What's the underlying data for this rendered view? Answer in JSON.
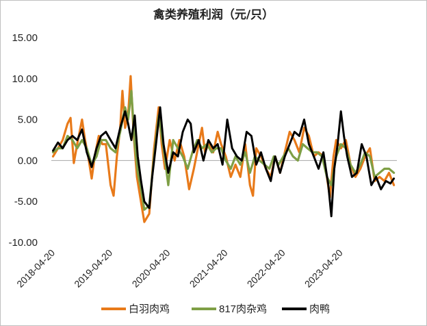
{
  "chart_data": {
    "type": "line",
    "title": "禽类养殖利润（元/只）",
    "xlabel": "",
    "ylabel": "",
    "ylim": [
      -10,
      15
    ],
    "yticks": [
      15,
      10,
      5,
      0,
      -5,
      -10
    ],
    "ytick_labels": [
      "15.00",
      "10.00",
      "5.00",
      "0.00",
      "-5.00",
      "-10.00"
    ],
    "xlim": [
      "2018-04-20",
      "2024-04-20"
    ],
    "xticks": [
      "2018-04-20",
      "2019-04-20",
      "2020-04-20",
      "2021-04-20",
      "2022-04-20",
      "2023-04-20"
    ],
    "grid": false,
    "legend_position": "bottom",
    "series": [
      {
        "name": "白羽肉鸡",
        "color": "#E87A1A",
        "points": [
          [
            "2018-05-01",
            0.5
          ],
          [
            "2018-06-01",
            1.5
          ],
          [
            "2018-07-01",
            2.5
          ],
          [
            "2018-08-01",
            4.5
          ],
          [
            "2018-08-20",
            5.2
          ],
          [
            "2018-09-10",
            -0.3
          ],
          [
            "2018-10-01",
            2.0
          ],
          [
            "2018-11-01",
            5.0
          ],
          [
            "2018-11-20",
            2.5
          ],
          [
            "2018-12-10",
            0.5
          ],
          [
            "2019-01-01",
            -2.2
          ],
          [
            "2019-01-20",
            0.5
          ],
          [
            "2019-02-15",
            3.0
          ],
          [
            "2019-03-10",
            2.0
          ],
          [
            "2019-04-01",
            2.0
          ],
          [
            "2019-05-01",
            -3.0
          ],
          [
            "2019-05-20",
            -4.3
          ],
          [
            "2019-06-10",
            0.5
          ],
          [
            "2019-07-01",
            4.0
          ],
          [
            "2019-07-15",
            8.5
          ],
          [
            "2019-08-01",
            4.0
          ],
          [
            "2019-08-20",
            5.5
          ],
          [
            "2019-09-05",
            10.3
          ],
          [
            "2019-09-25",
            3.0
          ],
          [
            "2019-10-15",
            -2.0
          ],
          [
            "2019-11-01",
            -4.0
          ],
          [
            "2019-12-01",
            -7.5
          ],
          [
            "2020-01-01",
            -6.5
          ],
          [
            "2020-02-01",
            1.5
          ],
          [
            "2020-03-01",
            6.5
          ],
          [
            "2020-03-20",
            2.0
          ],
          [
            "2020-04-10",
            -1.0
          ],
          [
            "2020-05-10",
            2.5
          ],
          [
            "2020-06-10",
            0.0
          ],
          [
            "2020-07-10",
            2.5
          ],
          [
            "2020-08-10",
            0.5
          ],
          [
            "2020-09-10",
            -3.5
          ],
          [
            "2020-10-10",
            -1.0
          ],
          [
            "2020-11-10",
            2.0
          ],
          [
            "2020-12-01",
            4.0
          ],
          [
            "2020-12-20",
            1.0
          ],
          [
            "2021-01-10",
            2.0
          ],
          [
            "2021-02-10",
            1.0
          ],
          [
            "2021-03-10",
            3.5
          ],
          [
            "2021-04-01",
            2.0
          ],
          [
            "2021-05-01",
            0.5
          ],
          [
            "2021-06-01",
            -2.0
          ],
          [
            "2021-07-01",
            -0.5
          ],
          [
            "2021-08-01",
            -2.0
          ],
          [
            "2021-09-01",
            2.0
          ],
          [
            "2021-10-01",
            -3.0
          ],
          [
            "2021-10-20",
            -4.3
          ],
          [
            "2021-11-10",
            1.5
          ],
          [
            "2021-12-10",
            0.5
          ],
          [
            "2022-01-10",
            -1.0
          ],
          [
            "2022-02-10",
            -2.0
          ],
          [
            "2022-03-10",
            0.5
          ],
          [
            "2022-04-10",
            -1.5
          ],
          [
            "2022-05-10",
            1.0
          ],
          [
            "2022-06-10",
            3.5
          ],
          [
            "2022-07-10",
            2.5
          ],
          [
            "2022-08-10",
            1.0
          ],
          [
            "2022-09-10",
            4.0
          ],
          [
            "2022-10-10",
            3.0
          ],
          [
            "2022-11-10",
            0.5
          ],
          [
            "2022-12-10",
            1.0
          ],
          [
            "2023-01-10",
            0.5
          ],
          [
            "2023-02-01",
            -2.0
          ],
          [
            "2023-02-20",
            -4.5
          ],
          [
            "2023-03-15",
            0.5
          ],
          [
            "2023-04-01",
            2.5
          ],
          [
            "2023-05-01",
            1.5
          ],
          [
            "2023-06-01",
            2.5
          ],
          [
            "2023-07-01",
            -0.5
          ],
          [
            "2023-08-01",
            -2.0
          ],
          [
            "2023-09-01",
            -1.0
          ],
          [
            "2023-10-01",
            0.5
          ],
          [
            "2023-11-01",
            1.5
          ],
          [
            "2023-12-01",
            -2.5
          ],
          [
            "2024-01-01",
            -2.0
          ],
          [
            "2024-02-01",
            -2.5
          ],
          [
            "2024-03-01",
            -1.5
          ],
          [
            "2024-04-01",
            -3.0
          ]
        ]
      },
      {
        "name": "817肉杂鸡",
        "color": "#7E9F45",
        "points": [
          [
            "2018-05-01",
            1.0
          ],
          [
            "2018-06-01",
            1.5
          ],
          [
            "2018-07-01",
            1.5
          ],
          [
            "2018-08-01",
            3.0
          ],
          [
            "2018-09-01",
            2.5
          ],
          [
            "2018-10-01",
            1.5
          ],
          [
            "2018-11-01",
            2.5
          ],
          [
            "2018-12-01",
            1.5
          ],
          [
            "2019-01-01",
            -0.5
          ],
          [
            "2019-02-01",
            0.5
          ],
          [
            "2019-03-01",
            2.5
          ],
          [
            "2019-04-01",
            2.5
          ],
          [
            "2019-05-01",
            1.5
          ],
          [
            "2019-06-01",
            1.0
          ],
          [
            "2019-07-01",
            3.5
          ],
          [
            "2019-08-01",
            6.5
          ],
          [
            "2019-08-20",
            5.0
          ],
          [
            "2019-09-10",
            8.5
          ],
          [
            "2019-10-01",
            2.0
          ],
          [
            "2019-10-20",
            -1.5
          ],
          [
            "2019-11-10",
            -3.5
          ],
          [
            "2019-12-01",
            -6.0
          ],
          [
            "2020-01-01",
            -5.5
          ],
          [
            "2020-02-01",
            0.5
          ],
          [
            "2020-03-01",
            5.5
          ],
          [
            "2020-04-01",
            1.5
          ],
          [
            "2020-05-01",
            -3.0
          ],
          [
            "2020-06-01",
            2.5
          ],
          [
            "2020-07-01",
            1.5
          ],
          [
            "2020-08-01",
            0.5
          ],
          [
            "2020-09-01",
            -1.0
          ],
          [
            "2020-10-01",
            1.0
          ],
          [
            "2020-11-01",
            2.5
          ],
          [
            "2020-12-01",
            1.5
          ],
          [
            "2021-01-01",
            2.0
          ],
          [
            "2021-02-01",
            1.0
          ],
          [
            "2021-03-01",
            1.5
          ],
          [
            "2021-04-01",
            1.5
          ],
          [
            "2021-05-01",
            0.0
          ],
          [
            "2021-06-01",
            -1.0
          ],
          [
            "2021-07-01",
            0.5
          ],
          [
            "2021-08-01",
            -0.5
          ],
          [
            "2021-09-01",
            1.0
          ],
          [
            "2021-10-01",
            -1.5
          ],
          [
            "2021-11-01",
            0.5
          ],
          [
            "2021-12-01",
            0.0
          ],
          [
            "2022-01-01",
            -0.5
          ],
          [
            "2022-02-01",
            -1.0
          ],
          [
            "2022-03-01",
            0.5
          ],
          [
            "2022-04-01",
            -0.5
          ],
          [
            "2022-05-01",
            0.5
          ],
          [
            "2022-06-01",
            1.5
          ],
          [
            "2022-07-01",
            0.5
          ],
          [
            "2022-08-01",
            0.0
          ],
          [
            "2022-09-01",
            2.0
          ],
          [
            "2022-10-01",
            1.5
          ],
          [
            "2022-11-01",
            1.0
          ],
          [
            "2022-12-01",
            1.0
          ],
          [
            "2023-01-01",
            0.5
          ],
          [
            "2023-02-01",
            -2.0
          ],
          [
            "2023-03-01",
            -3.0
          ],
          [
            "2023-04-01",
            0.5
          ],
          [
            "2023-05-01",
            2.0
          ],
          [
            "2023-06-01",
            1.5
          ],
          [
            "2023-07-01",
            -0.5
          ],
          [
            "2023-08-01",
            -1.5
          ],
          [
            "2023-09-01",
            -0.5
          ],
          [
            "2023-10-01",
            1.0
          ],
          [
            "2023-11-01",
            0.5
          ],
          [
            "2023-12-01",
            -2.0
          ],
          [
            "2024-01-01",
            -1.5
          ],
          [
            "2024-02-01",
            -1.0
          ],
          [
            "2024-03-01",
            -1.0
          ],
          [
            "2024-04-01",
            -1.5
          ]
        ]
      },
      {
        "name": "肉鸭",
        "color": "#000000",
        "points": [
          [
            "2018-05-01",
            1.2
          ],
          [
            "2018-06-01",
            2.2
          ],
          [
            "2018-07-01",
            1.5
          ],
          [
            "2018-08-01",
            2.5
          ],
          [
            "2018-09-01",
            3.0
          ],
          [
            "2018-10-01",
            2.5
          ],
          [
            "2018-11-01",
            3.8
          ],
          [
            "2018-12-01",
            1.0
          ],
          [
            "2019-01-01",
            -0.8
          ],
          [
            "2019-02-01",
            1.5
          ],
          [
            "2019-03-01",
            3.0
          ],
          [
            "2019-04-01",
            3.5
          ],
          [
            "2019-05-01",
            2.5
          ],
          [
            "2019-06-01",
            1.5
          ],
          [
            "2019-07-01",
            4.0
          ],
          [
            "2019-08-01",
            6.0
          ],
          [
            "2019-08-20",
            4.5
          ],
          [
            "2019-09-10",
            2.5
          ],
          [
            "2019-10-01",
            5.5
          ],
          [
            "2019-10-20",
            0.5
          ],
          [
            "2019-11-10",
            -2.5
          ],
          [
            "2019-12-01",
            -5.0
          ],
          [
            "2020-01-01",
            -5.8
          ],
          [
            "2020-01-20",
            -2.0
          ],
          [
            "2020-02-10",
            1.5
          ],
          [
            "2020-03-10",
            6.5
          ],
          [
            "2020-04-01",
            2.0
          ],
          [
            "2020-05-01",
            -1.5
          ],
          [
            "2020-06-01",
            1.0
          ],
          [
            "2020-07-01",
            0.5
          ],
          [
            "2020-08-01",
            3.5
          ],
          [
            "2020-09-01",
            5.0
          ],
          [
            "2020-09-20",
            4.5
          ],
          [
            "2020-10-10",
            1.0
          ],
          [
            "2020-11-10",
            2.5
          ],
          [
            "2020-12-10",
            0.0
          ],
          [
            "2021-01-10",
            2.5
          ],
          [
            "2021-02-10",
            1.5
          ],
          [
            "2021-03-10",
            2.0
          ],
          [
            "2021-04-10",
            -0.5
          ],
          [
            "2021-05-10",
            5.0
          ],
          [
            "2021-06-10",
            1.5
          ],
          [
            "2021-07-10",
            0.5
          ],
          [
            "2021-08-10",
            0.0
          ],
          [
            "2021-09-10",
            3.5
          ],
          [
            "2021-10-10",
            3.0
          ],
          [
            "2021-11-10",
            -0.5
          ],
          [
            "2021-12-10",
            1.0
          ],
          [
            "2022-01-10",
            -1.0
          ],
          [
            "2022-02-10",
            -2.5
          ],
          [
            "2022-03-10",
            0.5
          ],
          [
            "2022-04-10",
            -1.5
          ],
          [
            "2022-05-10",
            0.5
          ],
          [
            "2022-06-10",
            2.0
          ],
          [
            "2022-07-10",
            3.5
          ],
          [
            "2022-08-10",
            3.0
          ],
          [
            "2022-09-10",
            5.0
          ],
          [
            "2022-10-10",
            2.0
          ],
          [
            "2022-11-10",
            0.5
          ],
          [
            "2022-12-10",
            -1.0
          ],
          [
            "2023-01-10",
            1.0
          ],
          [
            "2023-02-10",
            -3.0
          ],
          [
            "2023-03-01",
            -6.8
          ],
          [
            "2023-03-20",
            -1.0
          ],
          [
            "2023-04-10",
            2.0
          ],
          [
            "2023-05-01",
            6.0
          ],
          [
            "2023-05-20",
            3.0
          ],
          [
            "2023-06-10",
            0.5
          ],
          [
            "2023-07-10",
            -2.0
          ],
          [
            "2023-08-10",
            -1.5
          ],
          [
            "2023-09-10",
            2.0
          ],
          [
            "2023-10-10",
            0.5
          ],
          [
            "2023-11-10",
            -3.0
          ],
          [
            "2023-12-10",
            -2.0
          ],
          [
            "2024-01-10",
            -3.5
          ],
          [
            "2024-02-10",
            -2.5
          ],
          [
            "2024-03-10",
            -2.8
          ],
          [
            "2024-04-01",
            -2.2
          ]
        ]
      }
    ]
  }
}
